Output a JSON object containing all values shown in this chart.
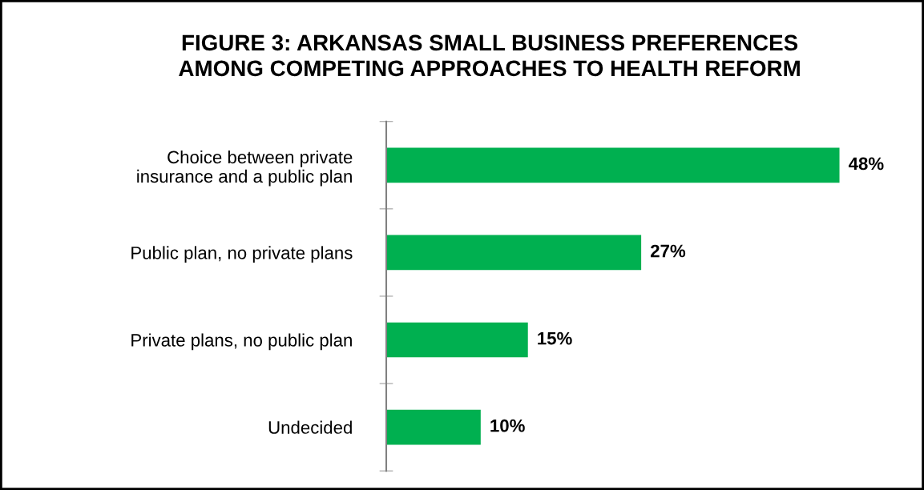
{
  "chart_data": {
    "type": "bar",
    "orientation": "horizontal",
    "title": "FIGURE 3: ARKANSAS SMALL BUSINESS PREFERENCES\nAMONG COMPETING APPROACHES TO HEALTH REFORM",
    "categories": [
      "Choice between private\ninsurance and a public plan",
      "Public plan, no private plans",
      "Private plans, no public plan",
      "Undecided"
    ],
    "values": [
      48,
      27,
      15,
      10
    ],
    "value_labels": [
      "48%",
      "27%",
      "15%",
      "10%"
    ],
    "color": "#00b050",
    "grid": false,
    "legend": false
  }
}
